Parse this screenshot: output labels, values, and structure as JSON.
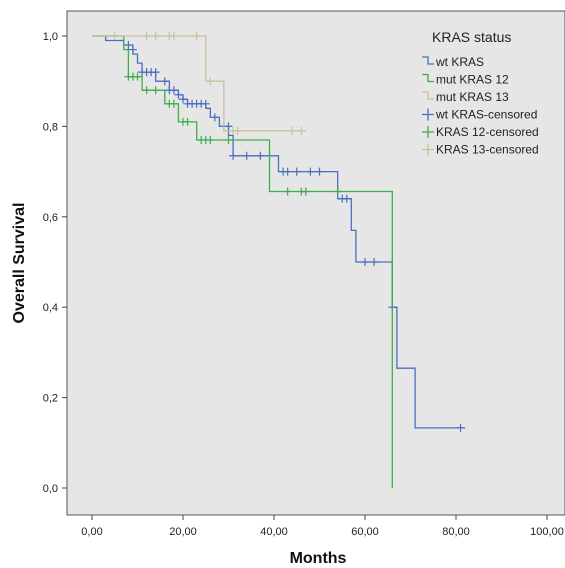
{
  "chart_data": {
    "type": "line",
    "subtype": "kaplan-meier",
    "xlabel": "Months",
    "ylabel": "Overall Survival",
    "xlim": [
      0,
      100
    ],
    "ylim": [
      0,
      1
    ],
    "xticks": [
      "0,00",
      "20,00",
      "40,00",
      "60,00",
      "80,00",
      "100,00"
    ],
    "yticks": [
      "0,0",
      "0,2",
      "0,4",
      "0,6",
      "0,8",
      "1,0"
    ],
    "grid": false,
    "legend": {
      "title": "KRAS status",
      "placement": "top-right",
      "entries": [
        {
          "label": "wt KRAS",
          "color": "#4a6fbf",
          "kind": "line"
        },
        {
          "label": "mut KRAS 12",
          "color": "#3fae49",
          "kind": "line"
        },
        {
          "label": "mut KRAS 13",
          "color": "#c9c19a",
          "kind": "line"
        },
        {
          "label": "wt KRAS-censored",
          "color": "#4a6fbf",
          "kind": "cross"
        },
        {
          "label": "KRAS 12-censored",
          "color": "#3fae49",
          "kind": "cross"
        },
        {
          "label": "KRAS 13-censored",
          "color": "#c9c19a",
          "kind": "cross"
        }
      ]
    },
    "series": [
      {
        "name": "wt KRAS",
        "color": "#4a6fbf",
        "steps": [
          [
            0,
            1.0
          ],
          [
            3,
            0.99
          ],
          [
            7,
            0.98
          ],
          [
            9,
            0.96
          ],
          [
            10,
            0.94
          ],
          [
            11,
            0.92
          ],
          [
            14,
            0.9
          ],
          [
            17,
            0.88
          ],
          [
            19,
            0.87
          ],
          [
            20,
            0.86
          ],
          [
            21,
            0.85
          ],
          [
            25,
            0.84
          ],
          [
            26,
            0.82
          ],
          [
            28,
            0.8
          ],
          [
            30,
            0.78
          ],
          [
            31,
            0.735
          ],
          [
            41,
            0.7
          ],
          [
            54,
            0.64
          ],
          [
            57,
            0.57
          ],
          [
            58,
            0.5
          ],
          [
            66,
            0.4
          ],
          [
            67,
            0.265
          ],
          [
            71,
            0.133
          ],
          [
            82,
            0.133
          ]
        ],
        "censored": [
          [
            8,
            0.98
          ],
          [
            9,
            0.97
          ],
          [
            11,
            0.92
          ],
          [
            12,
            0.92
          ],
          [
            13,
            0.92
          ],
          [
            14,
            0.92
          ],
          [
            16,
            0.9
          ],
          [
            17,
            0.88
          ],
          [
            18,
            0.88
          ],
          [
            19,
            0.87
          ],
          [
            20,
            0.86
          ],
          [
            21,
            0.85
          ],
          [
            22,
            0.85
          ],
          [
            23,
            0.85
          ],
          [
            24,
            0.85
          ],
          [
            25,
            0.85
          ],
          [
            27,
            0.82
          ],
          [
            29,
            0.8
          ],
          [
            30,
            0.8
          ],
          [
            31,
            0.735
          ],
          [
            34,
            0.735
          ],
          [
            37,
            0.735
          ],
          [
            42,
            0.7
          ],
          [
            43,
            0.7
          ],
          [
            45,
            0.7
          ],
          [
            48,
            0.7
          ],
          [
            50,
            0.7
          ],
          [
            55,
            0.64
          ],
          [
            56,
            0.64
          ],
          [
            60,
            0.5
          ],
          [
            62,
            0.5
          ],
          [
            66,
            0.4
          ],
          [
            81,
            0.133
          ]
        ]
      },
      {
        "name": "mut KRAS 12",
        "color": "#3fae49",
        "steps": [
          [
            0,
            1.0
          ],
          [
            5,
            1.0
          ],
          [
            7,
            0.97
          ],
          [
            8,
            0.91
          ],
          [
            10,
            0.91
          ],
          [
            11,
            0.88
          ],
          [
            16,
            0.85
          ],
          [
            19,
            0.81
          ],
          [
            22,
            0.81
          ],
          [
            23,
            0.77
          ],
          [
            31,
            0.77
          ],
          [
            33,
            0.77
          ],
          [
            38,
            0.77
          ],
          [
            39,
            0.656
          ],
          [
            66,
            0.656
          ],
          [
            66,
            0.0
          ]
        ],
        "censored": [
          [
            8,
            0.91
          ],
          [
            9,
            0.91
          ],
          [
            10,
            0.91
          ],
          [
            12,
            0.88
          ],
          [
            14,
            0.88
          ],
          [
            17,
            0.85
          ],
          [
            18,
            0.85
          ],
          [
            20,
            0.81
          ],
          [
            21,
            0.81
          ],
          [
            24,
            0.77
          ],
          [
            25,
            0.77
          ],
          [
            26,
            0.77
          ],
          [
            30,
            0.77
          ],
          [
            43,
            0.656
          ],
          [
            46,
            0.656
          ],
          [
            47,
            0.656
          ],
          [
            54,
            0.656
          ]
        ]
      },
      {
        "name": "mut KRAS 13",
        "color": "#c9c19a",
        "steps": [
          [
            0,
            1.0
          ],
          [
            24,
            1.0
          ],
          [
            25,
            0.9
          ],
          [
            28,
            0.9
          ],
          [
            29,
            0.79
          ],
          [
            47,
            0.79
          ]
        ],
        "censored": [
          [
            5,
            1.0
          ],
          [
            12,
            1.0
          ],
          [
            14,
            1.0
          ],
          [
            17,
            1.0
          ],
          [
            18,
            1.0
          ],
          [
            23,
            1.0
          ],
          [
            26,
            0.9
          ],
          [
            31,
            0.79
          ],
          [
            32,
            0.79
          ],
          [
            44,
            0.79
          ],
          [
            46,
            0.79
          ]
        ]
      }
    ]
  }
}
